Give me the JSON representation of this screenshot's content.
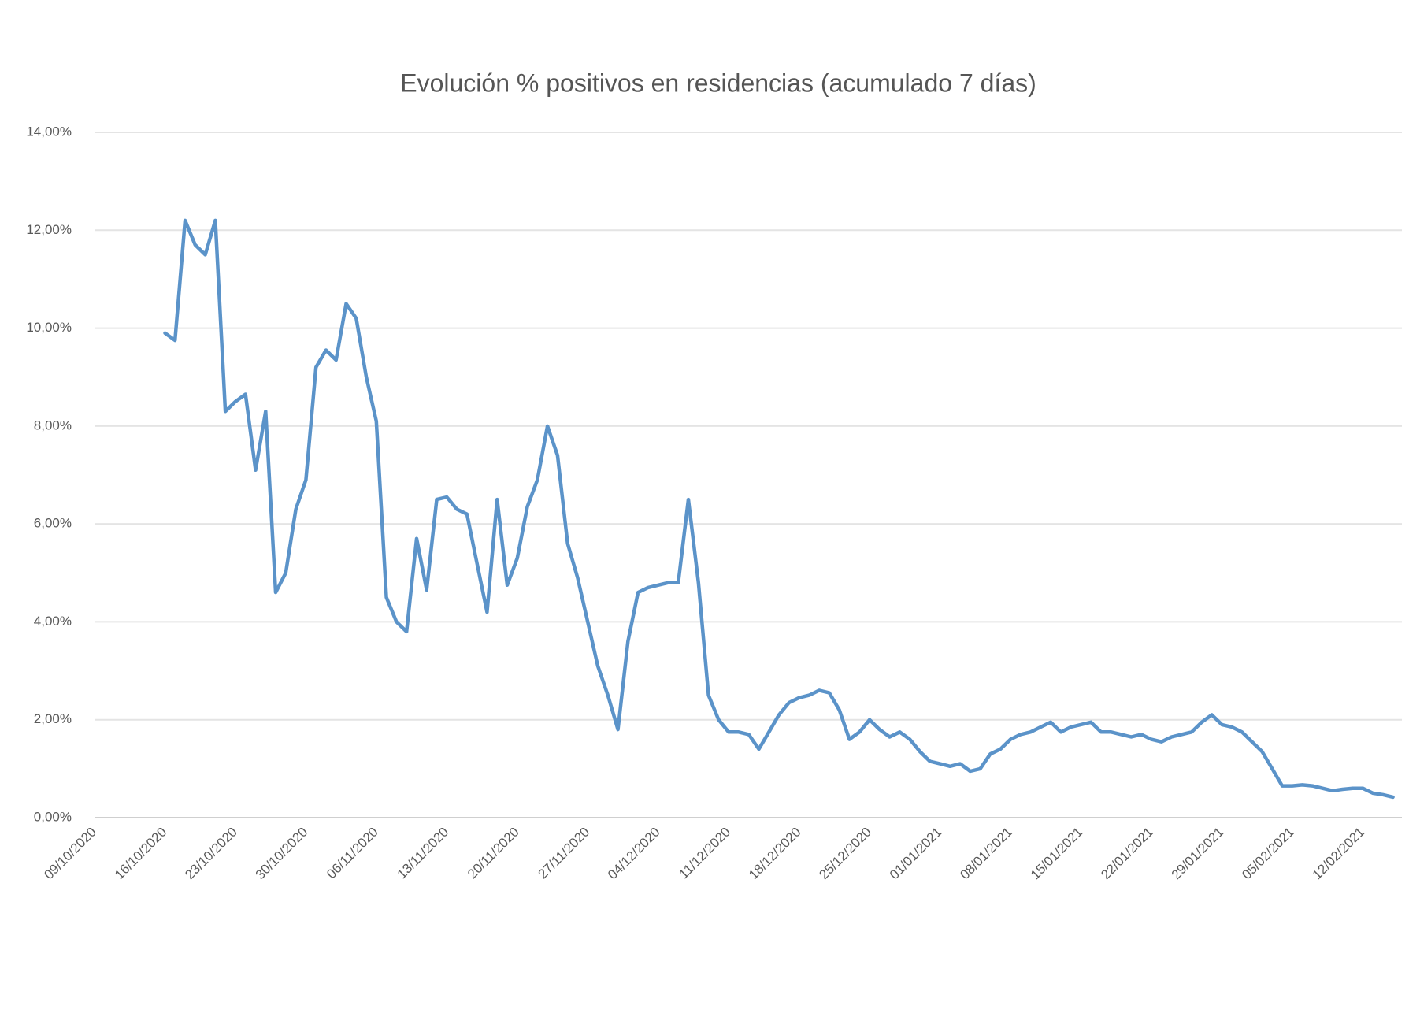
{
  "chart_data": {
    "type": "line",
    "title": "Evolución % positivos en residencias (acumulado 7 días)",
    "categories": [
      "09/10/2020",
      null,
      null,
      null,
      null,
      null,
      null,
      "16/10/2020",
      null,
      null,
      null,
      null,
      null,
      null,
      "23/10/2020",
      null,
      null,
      null,
      null,
      null,
      null,
      "30/10/2020",
      null,
      null,
      null,
      null,
      null,
      null,
      "06/11/2020",
      null,
      null,
      null,
      null,
      null,
      null,
      "13/11/2020",
      null,
      null,
      null,
      null,
      null,
      null,
      "20/11/2020",
      null,
      null,
      null,
      null,
      null,
      null,
      "27/11/2020",
      null,
      null,
      null,
      null,
      null,
      null,
      "04/12/2020",
      null,
      null,
      null,
      null,
      null,
      null,
      "11/12/2020",
      null,
      null,
      null,
      null,
      null,
      null,
      "18/12/2020",
      null,
      null,
      null,
      null,
      null,
      null,
      "25/12/2020",
      null,
      null,
      null,
      null,
      null,
      null,
      "01/01/2021",
      null,
      null,
      null,
      null,
      null,
      null,
      "08/01/2021",
      null,
      null,
      null,
      null,
      null,
      null,
      "15/01/2021",
      null,
      null,
      null,
      null,
      null,
      null,
      "22/01/2021",
      null,
      null,
      null,
      null,
      null,
      null,
      "29/01/2021",
      null,
      null,
      null,
      null,
      null,
      null,
      "05/02/2021",
      null,
      null,
      null,
      null,
      null,
      null,
      "12/02/2021",
      null,
      null,
      null
    ],
    "values": [
      null,
      null,
      null,
      null,
      null,
      null,
      null,
      9.9,
      9.75,
      12.2,
      11.7,
      11.5,
      12.2,
      8.3,
      8.5,
      8.65,
      7.1,
      8.3,
      4.6,
      5.0,
      6.3,
      6.9,
      9.2,
      9.55,
      9.35,
      10.5,
      10.2,
      9.0,
      8.1,
      4.5,
      4.0,
      3.8,
      5.7,
      4.65,
      6.5,
      6.55,
      6.3,
      6.2,
      5.2,
      4.2,
      6.5,
      4.75,
      5.3,
      6.35,
      6.9,
      8.0,
      7.4,
      5.6,
      4.9,
      4.0,
      3.1,
      2.5,
      1.8,
      3.6,
      4.6,
      4.7,
      4.75,
      4.8,
      4.8,
      6.5,
      4.8,
      2.5,
      2.0,
      1.75,
      1.75,
      1.7,
      1.4,
      1.75,
      2.1,
      2.35,
      2.45,
      2.5,
      2.6,
      2.55,
      2.2,
      1.6,
      1.75,
      2.0,
      1.8,
      1.65,
      1.75,
      1.6,
      1.35,
      1.15,
      1.1,
      1.05,
      1.1,
      0.95,
      1.0,
      1.3,
      1.4,
      1.6,
      1.7,
      1.75,
      1.85,
      1.95,
      1.75,
      1.85,
      1.9,
      1.95,
      1.75,
      1.75,
      1.7,
      1.65,
      1.7,
      1.6,
      1.55,
      1.65,
      1.7,
      1.75,
      1.95,
      2.1,
      1.9,
      1.85,
      1.75,
      1.55,
      1.35,
      1.0,
      0.65,
      0.65,
      0.67,
      0.65,
      0.6,
      0.55,
      0.58,
      0.6,
      0.6,
      0.5,
      0.47,
      0.42
    ],
    "color": "#5b93c9",
    "ylim": [
      0,
      14
    ],
    "yticks": [
      {
        "value": 0,
        "label": "0,00%"
      },
      {
        "value": 2,
        "label": "2,00%"
      },
      {
        "value": 4,
        "label": "4,00%"
      },
      {
        "value": 6,
        "label": "6,00%"
      },
      {
        "value": 8,
        "label": "8,00%"
      },
      {
        "value": 10,
        "label": "10,00%"
      },
      {
        "value": 12,
        "label": "12,00%"
      },
      {
        "value": 14,
        "label": "14,00%"
      }
    ],
    "grid": true
  }
}
